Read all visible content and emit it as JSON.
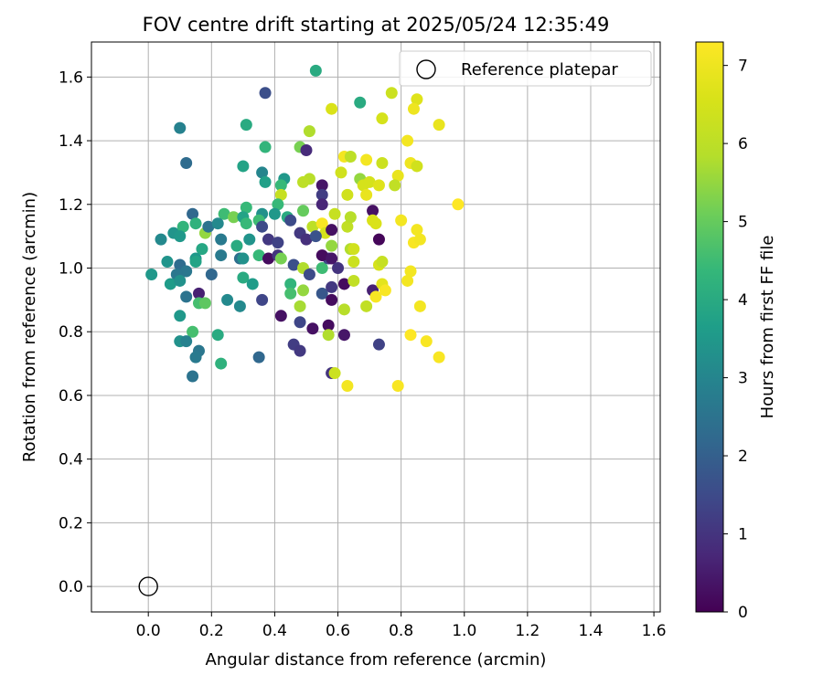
{
  "chart_data": {
    "type": "scatter",
    "title": "FOV centre drift starting at 2025/05/24 12:35:49",
    "xlabel": "Angular distance from reference (arcmin)",
    "ylabel": "Rotation from reference (arcmin)",
    "xlim": [
      -0.18,
      1.62
    ],
    "ylim": [
      -0.08,
      1.71
    ],
    "xticks": [
      "0.0",
      "0.2",
      "0.4",
      "0.6",
      "0.8",
      "1.0",
      "1.2",
      "1.4",
      "1.6"
    ],
    "yticks": [
      "0.0",
      "0.2",
      "0.4",
      "0.6",
      "0.8",
      "1.0",
      "1.2",
      "1.4",
      "1.6"
    ],
    "grid": true,
    "legend": {
      "placement": "top-right",
      "entries": [
        "Reference platepar"
      ]
    },
    "reference_point": {
      "x": 0.0,
      "y": 0.0,
      "label": "Reference platepar"
    },
    "colorbar": {
      "label": "Hours from first FF file",
      "colormap": "viridis",
      "range": [
        0,
        7.3
      ],
      "ticks": [
        "0",
        "1",
        "2",
        "3",
        "4",
        "5",
        "6",
        "7"
      ]
    },
    "points": [
      {
        "x": 0.53,
        "y": 1.62,
        "c": 4.0
      },
      {
        "x": 0.37,
        "y": 1.55,
        "c": 1.6
      },
      {
        "x": 0.67,
        "y": 1.52,
        "c": 4.0
      },
      {
        "x": 0.77,
        "y": 1.55,
        "c": 6.3
      },
      {
        "x": 0.58,
        "y": 1.5,
        "c": 6.6
      },
      {
        "x": 0.85,
        "y": 1.53,
        "c": 6.7
      },
      {
        "x": 0.84,
        "y": 1.5,
        "c": 7.0
      },
      {
        "x": 0.1,
        "y": 1.44,
        "c": 2.9
      },
      {
        "x": 0.31,
        "y": 1.45,
        "c": 4.0
      },
      {
        "x": 0.74,
        "y": 1.47,
        "c": 6.5
      },
      {
        "x": 0.92,
        "y": 1.45,
        "c": 6.9
      },
      {
        "x": 0.51,
        "y": 1.43,
        "c": 5.8
      },
      {
        "x": 0.37,
        "y": 1.38,
        "c": 4.3
      },
      {
        "x": 0.48,
        "y": 1.38,
        "c": 5.2
      },
      {
        "x": 0.5,
        "y": 1.37,
        "c": 0.8
      },
      {
        "x": 0.12,
        "y": 1.33,
        "c": 2.3
      },
      {
        "x": 0.3,
        "y": 1.32,
        "c": 3.8
      },
      {
        "x": 0.62,
        "y": 1.35,
        "c": 7.1
      },
      {
        "x": 0.64,
        "y": 1.35,
        "c": 6.0
      },
      {
        "x": 0.69,
        "y": 1.34,
        "c": 7.1
      },
      {
        "x": 0.74,
        "y": 1.33,
        "c": 6.3
      },
      {
        "x": 0.82,
        "y": 1.4,
        "c": 7.1
      },
      {
        "x": 0.83,
        "y": 1.33,
        "c": 7.0
      },
      {
        "x": 0.85,
        "y": 1.32,
        "c": 6.4
      },
      {
        "x": 0.36,
        "y": 1.3,
        "c": 3.0
      },
      {
        "x": 0.61,
        "y": 1.3,
        "c": 6.4
      },
      {
        "x": 0.67,
        "y": 1.28,
        "c": 5.5
      },
      {
        "x": 0.79,
        "y": 1.29,
        "c": 6.9
      },
      {
        "x": 0.37,
        "y": 1.27,
        "c": 3.7
      },
      {
        "x": 0.43,
        "y": 1.28,
        "c": 3.5
      },
      {
        "x": 0.51,
        "y": 1.28,
        "c": 5.9
      },
      {
        "x": 0.49,
        "y": 1.27,
        "c": 6.0
      },
      {
        "x": 0.68,
        "y": 1.26,
        "c": 6.5
      },
      {
        "x": 0.7,
        "y": 1.27,
        "c": 6.5
      },
      {
        "x": 0.73,
        "y": 1.26,
        "c": 6.7
      },
      {
        "x": 0.42,
        "y": 1.26,
        "c": 4.4
      },
      {
        "x": 0.55,
        "y": 1.26,
        "c": 0.4
      },
      {
        "x": 0.78,
        "y": 1.26,
        "c": 6.1
      },
      {
        "x": 0.55,
        "y": 1.23,
        "c": 1.2
      },
      {
        "x": 0.42,
        "y": 1.23,
        "c": 6.2
      },
      {
        "x": 0.63,
        "y": 1.23,
        "c": 6.4
      },
      {
        "x": 0.69,
        "y": 1.23,
        "c": 6.9
      },
      {
        "x": 0.98,
        "y": 1.2,
        "c": 7.3
      },
      {
        "x": 0.41,
        "y": 1.2,
        "c": 4.4
      },
      {
        "x": 0.55,
        "y": 1.2,
        "c": 0.7
      },
      {
        "x": 0.49,
        "y": 1.18,
        "c": 5.0
      },
      {
        "x": 0.71,
        "y": 1.18,
        "c": 0.3
      },
      {
        "x": 0.14,
        "y": 1.17,
        "c": 2.2
      },
      {
        "x": 0.24,
        "y": 1.17,
        "c": 4.5
      },
      {
        "x": 0.31,
        "y": 1.19,
        "c": 4.4
      },
      {
        "x": 0.36,
        "y": 1.17,
        "c": 3.3
      },
      {
        "x": 0.44,
        "y": 1.16,
        "c": 4.0
      },
      {
        "x": 0.59,
        "y": 1.17,
        "c": 6.2
      },
      {
        "x": 0.04,
        "y": 1.09,
        "c": 3.1
      },
      {
        "x": 0.08,
        "y": 1.11,
        "c": 3.4
      },
      {
        "x": 0.11,
        "y": 1.13,
        "c": 4.3
      },
      {
        "x": 0.15,
        "y": 1.14,
        "c": 4.2
      },
      {
        "x": 0.18,
        "y": 1.11,
        "c": 5.5
      },
      {
        "x": 0.19,
        "y": 1.13,
        "c": 2.5
      },
      {
        "x": 0.22,
        "y": 1.14,
        "c": 3.1
      },
      {
        "x": 0.27,
        "y": 1.16,
        "c": 5.2
      },
      {
        "x": 0.3,
        "y": 1.16,
        "c": 3.8
      },
      {
        "x": 0.31,
        "y": 1.14,
        "c": 4.4
      },
      {
        "x": 0.35,
        "y": 1.15,
        "c": 4.5
      },
      {
        "x": 0.4,
        "y": 1.17,
        "c": 3.5
      },
      {
        "x": 0.45,
        "y": 1.15,
        "c": 1.5
      },
      {
        "x": 0.52,
        "y": 1.13,
        "c": 6.0
      },
      {
        "x": 0.55,
        "y": 1.14,
        "c": 7.2
      },
      {
        "x": 0.56,
        "y": 1.11,
        "c": 6.5
      },
      {
        "x": 0.58,
        "y": 1.12,
        "c": 0.3
      },
      {
        "x": 0.63,
        "y": 1.13,
        "c": 6.1
      },
      {
        "x": 0.64,
        "y": 1.16,
        "c": 5.9
      },
      {
        "x": 0.71,
        "y": 1.15,
        "c": 6.6
      },
      {
        "x": 0.72,
        "y": 1.14,
        "c": 6.6
      },
      {
        "x": 0.8,
        "y": 1.15,
        "c": 7.1
      },
      {
        "x": 0.85,
        "y": 1.12,
        "c": 7.1
      },
      {
        "x": 0.84,
        "y": 1.08,
        "c": 7.2
      },
      {
        "x": 0.86,
        "y": 1.09,
        "c": 7.1
      },
      {
        "x": 0.1,
        "y": 1.1,
        "c": 3.5
      },
      {
        "x": 0.17,
        "y": 1.06,
        "c": 3.9
      },
      {
        "x": 0.23,
        "y": 1.09,
        "c": 2.7
      },
      {
        "x": 0.28,
        "y": 1.07,
        "c": 4.0
      },
      {
        "x": 0.32,
        "y": 1.09,
        "c": 3.4
      },
      {
        "x": 0.36,
        "y": 1.13,
        "c": 1.5
      },
      {
        "x": 0.38,
        "y": 1.09,
        "c": 1.1
      },
      {
        "x": 0.41,
        "y": 1.08,
        "c": 1.3
      },
      {
        "x": 0.48,
        "y": 1.11,
        "c": 1.1
      },
      {
        "x": 0.5,
        "y": 1.09,
        "c": 0.9
      },
      {
        "x": 0.53,
        "y": 1.1,
        "c": 1.7
      },
      {
        "x": 0.58,
        "y": 1.07,
        "c": 5.5
      },
      {
        "x": 0.64,
        "y": 1.06,
        "c": 5.8
      },
      {
        "x": 0.65,
        "y": 1.06,
        "c": 6.4
      },
      {
        "x": 0.73,
        "y": 1.09,
        "c": 0.1
      },
      {
        "x": 0.06,
        "y": 1.02,
        "c": 3.4
      },
      {
        "x": 0.1,
        "y": 1.01,
        "c": 2.3
      },
      {
        "x": 0.12,
        "y": 0.99,
        "c": 2.6
      },
      {
        "x": 0.09,
        "y": 0.98,
        "c": 2.6
      },
      {
        "x": 0.15,
        "y": 1.03,
        "c": 3.5
      },
      {
        "x": 0.15,
        "y": 1.02,
        "c": 3.8
      },
      {
        "x": 0.23,
        "y": 1.04,
        "c": 2.7
      },
      {
        "x": 0.29,
        "y": 1.03,
        "c": 2.4
      },
      {
        "x": 0.3,
        "y": 1.03,
        "c": 3.3
      },
      {
        "x": 0.35,
        "y": 1.04,
        "c": 4.4
      },
      {
        "x": 0.38,
        "y": 1.03,
        "c": 0.2
      },
      {
        "x": 0.41,
        "y": 1.04,
        "c": 1.0
      },
      {
        "x": 0.42,
        "y": 1.03,
        "c": 5.2
      },
      {
        "x": 0.46,
        "y": 1.01,
        "c": 1.6
      },
      {
        "x": 0.49,
        "y": 1.0,
        "c": 5.8
      },
      {
        "x": 0.51,
        "y": 0.98,
        "c": 1.5
      },
      {
        "x": 0.55,
        "y": 1.0,
        "c": 4.5
      },
      {
        "x": 0.57,
        "y": 1.03,
        "c": 1.4
      },
      {
        "x": 0.55,
        "y": 1.04,
        "c": 0.2
      },
      {
        "x": 0.58,
        "y": 1.03,
        "c": 0.4
      },
      {
        "x": 0.6,
        "y": 1.0,
        "c": 1.0
      },
      {
        "x": 0.65,
        "y": 1.02,
        "c": 6.3
      },
      {
        "x": 0.73,
        "y": 1.01,
        "c": 6.5
      },
      {
        "x": 0.74,
        "y": 1.02,
        "c": 6.2
      },
      {
        "x": 0.83,
        "y": 0.99,
        "c": 7.1
      },
      {
        "x": 0.01,
        "y": 0.98,
        "c": 3.5
      },
      {
        "x": 0.07,
        "y": 0.95,
        "c": 3.6
      },
      {
        "x": 0.1,
        "y": 0.96,
        "c": 3.3
      },
      {
        "x": 0.2,
        "y": 0.98,
        "c": 2.2
      },
      {
        "x": 0.3,
        "y": 0.97,
        "c": 4.0
      },
      {
        "x": 0.33,
        "y": 0.95,
        "c": 3.6
      },
      {
        "x": 0.45,
        "y": 0.95,
        "c": 4.3
      },
      {
        "x": 0.45,
        "y": 0.92,
        "c": 4.6
      },
      {
        "x": 0.49,
        "y": 0.93,
        "c": 5.5
      },
      {
        "x": 0.55,
        "y": 0.92,
        "c": 1.8
      },
      {
        "x": 0.58,
        "y": 0.94,
        "c": 1.1
      },
      {
        "x": 0.62,
        "y": 0.95,
        "c": 0.2
      },
      {
        "x": 0.65,
        "y": 0.96,
        "c": 6.1
      },
      {
        "x": 0.71,
        "y": 0.93,
        "c": 0.6
      },
      {
        "x": 0.72,
        "y": 0.91,
        "c": 7.2
      },
      {
        "x": 0.74,
        "y": 0.95,
        "c": 6.8
      },
      {
        "x": 0.75,
        "y": 0.93,
        "c": 7.2
      },
      {
        "x": 0.82,
        "y": 0.96,
        "c": 7.1
      },
      {
        "x": 0.12,
        "y": 0.91,
        "c": 2.5
      },
      {
        "x": 0.16,
        "y": 0.92,
        "c": 0.6
      },
      {
        "x": 0.16,
        "y": 0.89,
        "c": 4.6
      },
      {
        "x": 0.18,
        "y": 0.89,
        "c": 4.9
      },
      {
        "x": 0.25,
        "y": 0.9,
        "c": 3.1
      },
      {
        "x": 0.29,
        "y": 0.88,
        "c": 3.1
      },
      {
        "x": 0.36,
        "y": 0.9,
        "c": 1.4
      },
      {
        "x": 0.48,
        "y": 0.88,
        "c": 5.7
      },
      {
        "x": 0.58,
        "y": 0.9,
        "c": 0.2
      },
      {
        "x": 0.62,
        "y": 0.87,
        "c": 5.9
      },
      {
        "x": 0.69,
        "y": 0.88,
        "c": 6.1
      },
      {
        "x": 0.86,
        "y": 0.88,
        "c": 7.1
      },
      {
        "x": 0.1,
        "y": 0.85,
        "c": 3.5
      },
      {
        "x": 0.42,
        "y": 0.85,
        "c": 0.3
      },
      {
        "x": 0.48,
        "y": 0.83,
        "c": 1.4
      },
      {
        "x": 0.57,
        "y": 0.82,
        "c": 0.2
      },
      {
        "x": 0.52,
        "y": 0.81,
        "c": 0.3
      },
      {
        "x": 0.14,
        "y": 0.8,
        "c": 4.6
      },
      {
        "x": 0.22,
        "y": 0.79,
        "c": 4.0
      },
      {
        "x": 0.57,
        "y": 0.79,
        "c": 5.8
      },
      {
        "x": 0.62,
        "y": 0.79,
        "c": 0.4
      },
      {
        "x": 0.83,
        "y": 0.79,
        "c": 7.3
      },
      {
        "x": 0.88,
        "y": 0.77,
        "c": 7.2
      },
      {
        "x": 0.1,
        "y": 0.77,
        "c": 3.3
      },
      {
        "x": 0.12,
        "y": 0.77,
        "c": 2.9
      },
      {
        "x": 0.46,
        "y": 0.76,
        "c": 1.2
      },
      {
        "x": 0.48,
        "y": 0.74,
        "c": 1.1
      },
      {
        "x": 0.73,
        "y": 0.76,
        "c": 1.3
      },
      {
        "x": 0.16,
        "y": 0.74,
        "c": 2.6
      },
      {
        "x": 0.15,
        "y": 0.72,
        "c": 2.7
      },
      {
        "x": 0.35,
        "y": 0.72,
        "c": 2.2
      },
      {
        "x": 0.92,
        "y": 0.72,
        "c": 7.2
      },
      {
        "x": 0.23,
        "y": 0.7,
        "c": 4.2
      },
      {
        "x": 0.58,
        "y": 0.67,
        "c": 1.0
      },
      {
        "x": 0.59,
        "y": 0.67,
        "c": 6.3
      },
      {
        "x": 0.14,
        "y": 0.66,
        "c": 2.5
      },
      {
        "x": 0.63,
        "y": 0.63,
        "c": 7.1
      },
      {
        "x": 0.79,
        "y": 0.63,
        "c": 7.2
      }
    ]
  }
}
